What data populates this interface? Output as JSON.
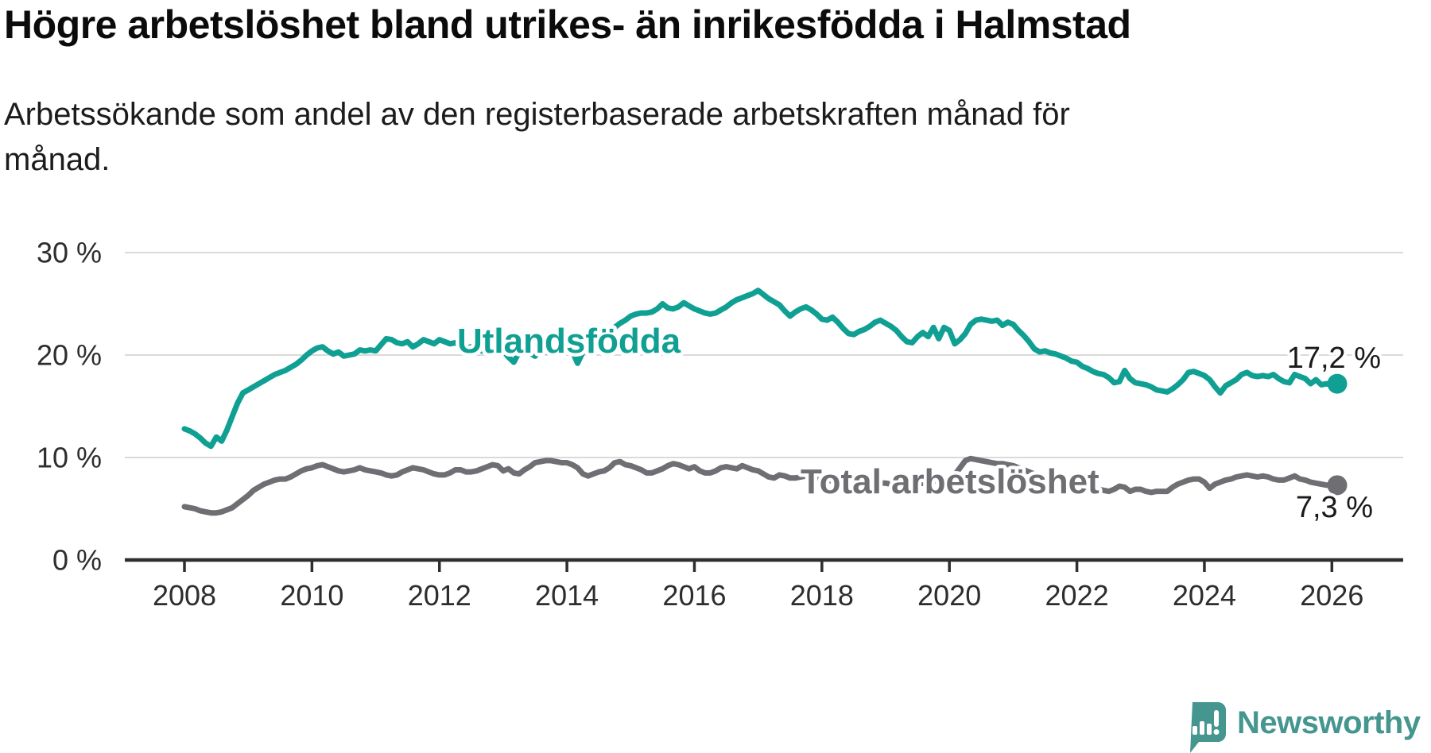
{
  "header": {
    "title": "Högre arbetslöshet bland utrikes- än inrikesfödda i Halmstad",
    "subtitle": "Arbetssökande som andel av den registerbaserade arbetskraften månad för månad."
  },
  "chart_data": {
    "type": "line",
    "x_start": "2008-01",
    "x_end": "2026-02",
    "x_step": "1 month",
    "x_ticks": [
      2008,
      2010,
      2012,
      2014,
      2016,
      2018,
      2020,
      2022,
      2024,
      2026
    ],
    "y_ticks": [
      {
        "label": "30 %",
        "value": 30
      },
      {
        "label": "20 %",
        "value": 20
      },
      {
        "label": "10 %",
        "value": 10
      },
      {
        "label": "0 %",
        "value": 0
      }
    ],
    "ylim": [
      0,
      32
    ],
    "grid": "horizontal-only",
    "legend_position": "inline-labels",
    "colors": {
      "utlandsfodda": "#10a093",
      "total": "#6f6e73",
      "gridline": "#d5d5d5",
      "axis": "#2e2e2e",
      "end_label": "#1a1a1a"
    },
    "series": [
      {
        "name": "Utlandsfödda",
        "color": "#10a093",
        "end_label": "17,2 %",
        "end_value": 17.2,
        "values": [
          12.8,
          12.6,
          12.3,
          11.9,
          11.4,
          11.1,
          12.0,
          11.6,
          12.7,
          14.0,
          15.3,
          16.3,
          16.6,
          16.9,
          17.2,
          17.5,
          17.8,
          18.1,
          18.3,
          18.5,
          18.8,
          19.1,
          19.5,
          20.0,
          20.4,
          20.7,
          20.8,
          20.4,
          20.1,
          20.3,
          19.9,
          20.0,
          20.1,
          20.5,
          20.4,
          20.5,
          20.4,
          21.0,
          21.6,
          21.5,
          21.2,
          21.1,
          21.3,
          20.8,
          21.1,
          21.5,
          21.3,
          21.1,
          21.5,
          21.3,
          21.1,
          21.2,
          20.9,
          20.7,
          20.8,
          20.6,
          20.4,
          20.7,
          20.5,
          20.3,
          20.4,
          19.8,
          19.3,
          20.3,
          20.5,
          20.2,
          19.9,
          20.5,
          20.3,
          20.2,
          20.5,
          20.6,
          20.6,
          20.4,
          19.2,
          20.3,
          20.8,
          21.2,
          21.5,
          21.9,
          22.3,
          22.7,
          23.1,
          23.4,
          23.8,
          24.0,
          24.1,
          24.1,
          24.2,
          24.5,
          25.0,
          24.6,
          24.5,
          24.7,
          25.1,
          24.8,
          24.5,
          24.3,
          24.1,
          24.0,
          24.1,
          24.4,
          24.7,
          25.1,
          25.4,
          25.6,
          25.8,
          26.0,
          26.3,
          25.9,
          25.5,
          25.2,
          24.9,
          24.3,
          23.8,
          24.2,
          24.5,
          24.7,
          24.4,
          24.0,
          23.5,
          23.4,
          23.7,
          23.2,
          22.6,
          22.1,
          22.0,
          22.3,
          22.5,
          22.8,
          23.2,
          23.4,
          23.1,
          22.8,
          22.4,
          21.8,
          21.3,
          21.2,
          21.8,
          22.2,
          21.8,
          22.7,
          21.6,
          22.7,
          22.4,
          21.1,
          21.5,
          22.1,
          23.0,
          23.4,
          23.5,
          23.4,
          23.3,
          23.4,
          22.9,
          23.2,
          23.0,
          22.4,
          21.9,
          21.3,
          20.6,
          20.3,
          20.4,
          20.2,
          20.1,
          19.9,
          19.7,
          19.4,
          19.3,
          18.9,
          18.7,
          18.4,
          18.2,
          18.1,
          17.8,
          17.3,
          17.4,
          18.5,
          17.7,
          17.3,
          17.2,
          17.1,
          16.9,
          16.6,
          16.5,
          16.4,
          16.7,
          17.1,
          17.6,
          18.3,
          18.4,
          18.2,
          18.0,
          17.6,
          16.9,
          16.3,
          17.0,
          17.3,
          17.6,
          18.1,
          18.3,
          18.0,
          17.9,
          18.0,
          17.9,
          18.1,
          17.7,
          17.4,
          17.3,
          18.1,
          17.9,
          17.7,
          17.2,
          17.6,
          17.1,
          17.2,
          17.1,
          17.2
        ]
      },
      {
        "name": "Total arbetslöshet",
        "color": "#6f6e73",
        "end_label": "7,3 %",
        "end_value": 7.3,
        "values": [
          5.2,
          5.1,
          5.0,
          4.8,
          4.7,
          4.6,
          4.6,
          4.7,
          4.9,
          5.1,
          5.5,
          5.9,
          6.3,
          6.8,
          7.1,
          7.4,
          7.6,
          7.8,
          7.9,
          7.9,
          8.1,
          8.4,
          8.7,
          8.9,
          9.0,
          9.2,
          9.3,
          9.1,
          8.9,
          8.7,
          8.6,
          8.7,
          8.8,
          9.0,
          8.8,
          8.7,
          8.6,
          8.5,
          8.3,
          8.2,
          8.3,
          8.6,
          8.8,
          9.0,
          8.9,
          8.8,
          8.6,
          8.4,
          8.3,
          8.3,
          8.5,
          8.8,
          8.8,
          8.6,
          8.6,
          8.7,
          8.9,
          9.1,
          9.3,
          9.2,
          8.7,
          8.9,
          8.5,
          8.4,
          8.8,
          9.1,
          9.5,
          9.6,
          9.7,
          9.7,
          9.6,
          9.5,
          9.5,
          9.3,
          9.0,
          8.4,
          8.2,
          8.4,
          8.6,
          8.7,
          9.0,
          9.5,
          9.6,
          9.3,
          9.2,
          9.0,
          8.8,
          8.5,
          8.5,
          8.7,
          8.9,
          9.2,
          9.4,
          9.3,
          9.1,
          8.9,
          9.1,
          8.7,
          8.5,
          8.5,
          8.7,
          9.0,
          9.1,
          9.0,
          8.9,
          9.2,
          9.0,
          8.8,
          8.7,
          8.4,
          8.1,
          8.0,
          8.3,
          8.2,
          8.0,
          8.0,
          8.1,
          8.2,
          8.1,
          8.0,
          7.9,
          7.8,
          7.7,
          7.6,
          7.6,
          7.5,
          7.6,
          7.6,
          7.7,
          7.7,
          7.6,
          7.5,
          7.5,
          7.4,
          7.3,
          7.3,
          7.2,
          7.3,
          7.4,
          7.5,
          7.6,
          7.7,
          7.8,
          7.9,
          8.1,
          8.3,
          9.0,
          9.7,
          9.9,
          9.8,
          9.7,
          9.6,
          9.5,
          9.4,
          9.4,
          9.3,
          9.2,
          9.0,
          8.8,
          8.6,
          8.4,
          8.2,
          8.0,
          7.9,
          7.7,
          7.6,
          7.5,
          7.4,
          7.4,
          7.2,
          7.1,
          7.0,
          6.9,
          6.8,
          6.7,
          6.9,
          7.2,
          7.1,
          6.7,
          6.9,
          6.9,
          6.7,
          6.6,
          6.7,
          6.7,
          6.7,
          7.1,
          7.4,
          7.6,
          7.8,
          7.9,
          7.9,
          7.6,
          7.0,
          7.4,
          7.6,
          7.8,
          7.9,
          8.1,
          8.2,
          8.3,
          8.2,
          8.1,
          8.2,
          8.1,
          7.9,
          7.8,
          7.8,
          8.0,
          8.2,
          7.9,
          7.8,
          7.6,
          7.5,
          7.4,
          7.3,
          7.3,
          7.3
        ]
      }
    ]
  },
  "branding": {
    "logo_text": "Newsworthy"
  }
}
